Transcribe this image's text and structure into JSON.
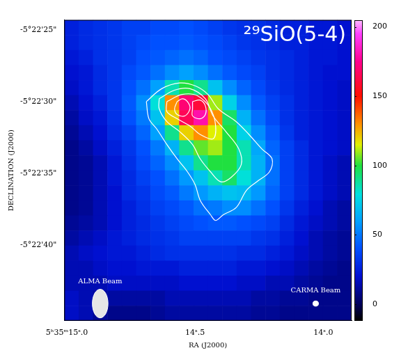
{
  "chart_data": {
    "type": "heatmap",
    "title": "²⁹SiO(5-4)",
    "x_label": "RA (J2000)",
    "y_label": "DECLINATION (J2000)",
    "xlim": [
      15.01,
      13.89
    ],
    "ylim": [
      45.3,
      24.3
    ],
    "xticks": [
      {
        "value": 15.0,
        "label": "5ʰ35ᵐ15ˢ.0"
      },
      {
        "value": 14.5,
        "label": "14ˢ.5"
      },
      {
        "value": 14.0,
        "label": "14ˢ.0"
      }
    ],
    "yticks": [
      {
        "value": 25,
        "label": "-5°22'25\""
      },
      {
        "value": 30,
        "label": "-5°22'30\""
      },
      {
        "value": 35,
        "label": "-5°22'35\""
      },
      {
        "value": 40,
        "label": "-5°22'40\""
      }
    ],
    "grid": false,
    "cells": {
      "x": [
        14.982,
        14.926,
        14.87,
        14.814,
        14.758,
        14.702,
        14.646,
        14.59,
        14.534,
        14.478,
        14.422,
        14.366,
        14.31,
        14.254,
        14.198,
        14.142,
        14.086,
        14.03,
        13.974,
        13.918
      ],
      "y": [
        24.825,
        25.875,
        26.925,
        27.975,
        29.025,
        30.075,
        31.125,
        32.175,
        33.225,
        34.275,
        35.325,
        36.375,
        37.425,
        38.475,
        39.525,
        40.575,
        41.625,
        42.675,
        43.725,
        44.775
      ],
      "values": [
        [
          25,
          28,
          30,
          32,
          35,
          35,
          38,
          38,
          40,
          38,
          35,
          32,
          30,
          30,
          28,
          25,
          25,
          22,
          22,
          20
        ],
        [
          25,
          28,
          30,
          32,
          35,
          38,
          40,
          40,
          42,
          40,
          38,
          35,
          32,
          30,
          28,
          25,
          25,
          22,
          22,
          20
        ],
        [
          22,
          25,
          30,
          32,
          35,
          40,
          42,
          45,
          48,
          45,
          40,
          38,
          35,
          32,
          30,
          28,
          25,
          22,
          22,
          20
        ],
        [
          20,
          22,
          28,
          32,
          38,
          42,
          48,
          55,
          60,
          55,
          48,
          42,
          38,
          35,
          30,
          28,
          25,
          22,
          20,
          20
        ],
        [
          18,
          22,
          28,
          32,
          40,
          48,
          60,
          85,
          100,
          90,
          70,
          55,
          45,
          38,
          32,
          28,
          25,
          22,
          20,
          18
        ],
        [
          15,
          20,
          25,
          32,
          42,
          55,
          80,
          130,
          170,
          160,
          110,
          75,
          55,
          42,
          35,
          30,
          25,
          22,
          20,
          18
        ],
        [
          12,
          18,
          22,
          30,
          40,
          50,
          70,
          120,
          165,
          180,
          130,
          95,
          65,
          48,
          38,
          30,
          25,
          22,
          20,
          18
        ],
        [
          10,
          15,
          20,
          28,
          35,
          45,
          60,
          90,
          120,
          130,
          115,
          100,
          75,
          55,
          42,
          32,
          25,
          22,
          20,
          18
        ],
        [
          8,
          12,
          18,
          25,
          32,
          40,
          50,
          65,
          90,
          105,
          110,
          100,
          85,
          62,
          45,
          35,
          28,
          22,
          20,
          18
        ],
        [
          8,
          10,
          15,
          22,
          30,
          38,
          45,
          55,
          70,
          90,
          100,
          100,
          85,
          65,
          48,
          35,
          28,
          22,
          18,
          15
        ],
        [
          8,
          10,
          15,
          22,
          28,
          35,
          40,
          48,
          58,
          70,
          85,
          95,
          80,
          65,
          48,
          35,
          28,
          22,
          18,
          15
        ],
        [
          8,
          10,
          15,
          20,
          28,
          32,
          38,
          42,
          50,
          58,
          65,
          70,
          68,
          58,
          45,
          35,
          28,
          22,
          18,
          15
        ],
        [
          8,
          10,
          15,
          20,
          25,
          30,
          35,
          38,
          42,
          48,
          50,
          55,
          55,
          48,
          40,
          32,
          25,
          20,
          15,
          12
        ],
        [
          10,
          12,
          15,
          20,
          25,
          28,
          32,
          35,
          38,
          40,
          42,
          42,
          40,
          38,
          35,
          28,
          22,
          18,
          15,
          12
        ],
        [
          12,
          15,
          18,
          22,
          25,
          28,
          30,
          32,
          35,
          35,
          35,
          35,
          35,
          32,
          30,
          25,
          20,
          15,
          12,
          10
        ],
        [
          15,
          18,
          20,
          22,
          22,
          25,
          28,
          30,
          30,
          30,
          30,
          30,
          28,
          28,
          25,
          22,
          18,
          15,
          12,
          10
        ],
        [
          15,
          15,
          18,
          20,
          20,
          22,
          22,
          22,
          25,
          25,
          25,
          25,
          22,
          22,
          20,
          18,
          15,
          12,
          10,
          8
        ],
        [
          15,
          15,
          15,
          18,
          18,
          18,
          18,
          18,
          20,
          20,
          20,
          20,
          18,
          18,
          15,
          15,
          12,
          10,
          8,
          8
        ],
        [
          18,
          15,
          12,
          12,
          12,
          12,
          12,
          15,
          15,
          15,
          15,
          15,
          15,
          12,
          12,
          10,
          10,
          8,
          8,
          8
        ],
        [
          18,
          15,
          10,
          8,
          8,
          8,
          10,
          12,
          12,
          12,
          12,
          12,
          12,
          10,
          10,
          8,
          8,
          8,
          8,
          8
        ]
      ]
    },
    "colorbar": {
      "range": [
        -12,
        205
      ],
      "ticks": [
        0,
        50,
        100,
        150,
        200
      ]
    },
    "contours": [
      {
        "color": "#ffffff",
        "x": [
          14.69,
          14.63,
          14.56,
          14.5,
          14.45,
          14.41,
          14.34,
          14.29,
          14.24,
          14.2,
          14.21,
          14.26,
          14.3,
          14.34,
          14.39,
          14.42,
          14.44,
          14.48,
          14.5,
          14.53,
          14.57,
          14.61,
          14.65,
          14.68,
          14.69
        ],
        "y": [
          30.0,
          29.1,
          28.7,
          28.9,
          29.5,
          30.5,
          31.4,
          32.3,
          33.3,
          34.0,
          34.9,
          35.6,
          36.2,
          37.4,
          37.9,
          38.3,
          37.9,
          36.9,
          35.8,
          34.9,
          34.0,
          33.0,
          31.9,
          31.2,
          30.0
        ]
      },
      {
        "color": "#ffffff",
        "x": [
          14.64,
          14.58,
          14.52,
          14.46,
          14.43,
          14.38,
          14.33,
          14.32,
          14.36,
          14.4,
          14.44,
          14.48,
          14.51,
          14.56,
          14.61,
          14.64,
          14.64
        ],
        "y": [
          29.8,
          29.2,
          29.1,
          29.8,
          31.0,
          32.1,
          33.3,
          34.4,
          35.3,
          35.6,
          34.9,
          34.0,
          33.0,
          32.1,
          31.4,
          30.5,
          29.8
        ]
      },
      {
        "color": "#ffffff",
        "x": [
          14.61,
          14.55,
          14.49,
          14.44,
          14.42,
          14.43,
          14.48,
          14.52,
          14.57,
          14.61,
          14.61
        ],
        "y": [
          30.0,
          29.5,
          29.6,
          30.5,
          31.7,
          32.6,
          32.3,
          31.7,
          31.2,
          30.7,
          30.0
        ]
      },
      {
        "color": "#ffffff",
        "x": [
          14.57,
          14.55,
          14.53,
          14.52,
          14.54,
          14.57,
          14.58,
          14.57
        ],
        "y": [
          30.0,
          29.8,
          30.0,
          30.5,
          31.0,
          30.9,
          30.5,
          30.0
        ]
      },
      {
        "color": "#ffffff",
        "x": [
          14.51,
          14.48,
          14.46,
          14.46,
          14.48,
          14.51,
          14.51,
          14.51
        ],
        "y": [
          30.0,
          29.9,
          30.3,
          30.9,
          31.2,
          31.0,
          30.5,
          30.0
        ]
      }
    ],
    "beams": [
      {
        "label": "ALMA Beam",
        "x": 14.87,
        "y": 44.1,
        "width": 0.061,
        "height": 2.0,
        "color": "#e6e6e6"
      },
      {
        "label": "CARMA Beam",
        "x": 14.03,
        "y": 44.1,
        "width": 0.022,
        "height": 0.37,
        "color": "#ffffff"
      }
    ]
  }
}
